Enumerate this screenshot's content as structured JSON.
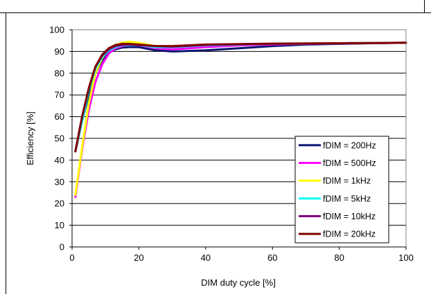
{
  "chart_data": {
    "type": "line",
    "title": "",
    "xlabel": "DIM duty cycle [%]",
    "ylabel": "Efficiency [%]",
    "xlim": [
      0,
      100
    ],
    "ylim": [
      0,
      100
    ],
    "xticks": [
      0,
      20,
      40,
      60,
      80,
      100
    ],
    "yticks": [
      0,
      10,
      20,
      30,
      40,
      50,
      60,
      70,
      80,
      90,
      100
    ],
    "grid": "horizontal",
    "legend_position": "bottom-right",
    "series": [
      {
        "name": "fDIM = 200Hz",
        "color": "#0a1470",
        "x": [
          1,
          3,
          5,
          7,
          9,
          11,
          13,
          15,
          17,
          20,
          25,
          30,
          40,
          50,
          60,
          70,
          80,
          90,
          100
        ],
        "y": [
          44,
          58,
          70,
          80,
          86,
          89.5,
          91,
          91.8,
          92,
          92,
          90.5,
          90,
          90.5,
          91.5,
          92.5,
          93.2,
          93.5,
          93.8,
          94
        ]
      },
      {
        "name": "fDIM = 500Hz",
        "color": "#ff00ff",
        "x": [
          1,
          3,
          5,
          7,
          9,
          11,
          13,
          15,
          17,
          20,
          25,
          30,
          40,
          50,
          60,
          70,
          80,
          90,
          100
        ],
        "y": [
          23,
          45,
          63,
          76,
          84,
          89,
          91.5,
          92.5,
          93,
          93,
          91.5,
          91,
          92,
          92.8,
          93.2,
          93.5,
          93.7,
          93.8,
          94
        ]
      },
      {
        "name": "fDIM = 1kHz",
        "color": "#ffff00",
        "x": [
          1,
          3,
          5,
          7,
          9,
          11,
          13,
          15,
          17,
          20,
          25,
          30,
          40,
          50,
          60,
          70,
          80,
          90,
          100
        ],
        "y": [
          24,
          46,
          66,
          80,
          87,
          91,
          93,
          94,
          94.5,
          94,
          92.5,
          92.2,
          93,
          93.3,
          93.5,
          93.6,
          93.8,
          93.9,
          94
        ]
      },
      {
        "name": "fDIM = 5kHz",
        "color": "#00ffff",
        "x": [
          1,
          3,
          5,
          7,
          9,
          11,
          13,
          15,
          17,
          20,
          25,
          30,
          40,
          50,
          60,
          70,
          80,
          90,
          100
        ],
        "y": [
          44,
          58,
          72,
          82,
          87.5,
          90.5,
          92,
          92.8,
          93,
          93,
          92,
          92,
          92.8,
          93.2,
          93.5,
          93.6,
          93.8,
          93.9,
          94
        ]
      },
      {
        "name": "fDIM = 10kHz",
        "color": "#800080",
        "x": [
          1,
          3,
          5,
          7,
          9,
          11,
          13,
          15,
          17,
          20,
          25,
          30,
          40,
          50,
          60,
          70,
          80,
          90,
          100
        ],
        "y": [
          44,
          60,
          73,
          83,
          88,
          91,
          92.5,
          93,
          93.2,
          93,
          92.5,
          92.2,
          93,
          93.3,
          93.5,
          93.6,
          93.8,
          93.9,
          94
        ]
      },
      {
        "name": "fDIM = 20kHz",
        "color": "#800000",
        "x": [
          1,
          3,
          5,
          7,
          9,
          11,
          13,
          15,
          17,
          20,
          25,
          30,
          40,
          50,
          60,
          70,
          80,
          90,
          100
        ],
        "y": [
          44,
          60,
          73,
          83,
          88.5,
          91.5,
          93,
          93.5,
          93.5,
          93.2,
          92.5,
          92.5,
          93.2,
          93.4,
          93.6,
          93.7,
          93.8,
          93.9,
          94
        ]
      }
    ]
  }
}
